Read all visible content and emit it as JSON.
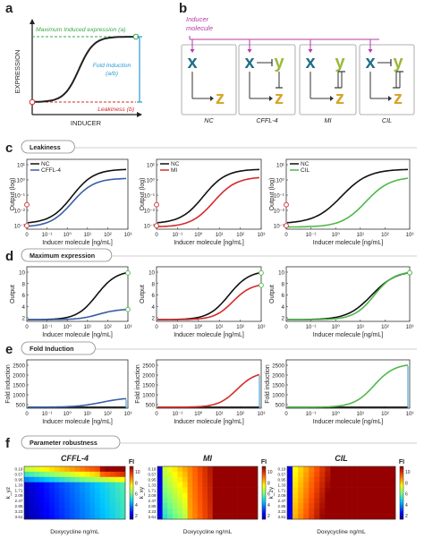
{
  "colors": {
    "black": "#111111",
    "blue": "#3a5ea6",
    "red": "#d62a2a",
    "green": "#4fb84a",
    "ma": "#b43aa8",
    "xcol": "#1f6f86",
    "ycol": "#9ab83a",
    "zcol": "#d6a52a",
    "dash_green": "#3aa84a",
    "dash_red": "#d62a2a",
    "fi_line": "#2a9ad6"
  },
  "panel_a": {
    "letter": "a",
    "ylabel": "EXPRESSION",
    "xlabel": "INDUCER",
    "max_label": "Maximum Induced expression (a)",
    "fold_label_1": "Fold Induction",
    "fold_label_2": "(a/b)",
    "leak_label": "Leakiness (b)"
  },
  "panel_b": {
    "letter": "b",
    "inducer_1": "Inducer",
    "inducer_2": "molecule",
    "x": "x",
    "y": "y",
    "z": "z",
    "circuits": [
      "NC",
      "CFFL-4",
      "MI",
      "CIL"
    ]
  },
  "panel_c": {
    "letter": "c",
    "section_title": "Leakiness",
    "ylabel": "Output (log)",
    "xlabel": "Inducer molecule [ng/mL]",
    "yticks": [
      "10¹",
      "10⁰",
      "10⁻¹",
      "10⁻²",
      "10⁻³"
    ],
    "xticks": [
      "0",
      "10⁻¹",
      "10⁰",
      "10¹",
      "10²",
      "10³"
    ],
    "legends": [
      [
        "NC",
        "CFFL-4"
      ],
      [
        "NC",
        "MI"
      ],
      [
        "NC",
        "CIL"
      ]
    ]
  },
  "panel_d": {
    "letter": "d",
    "section_title": "Maximum expression",
    "ylabel": "Output",
    "xlabel": "Inducer molecule [ng/mL]",
    "yticks": [
      "10",
      "8",
      "6",
      "4",
      "2"
    ],
    "xticks": [
      "0",
      "10⁻¹",
      "10⁰",
      "10¹",
      "10²",
      "10³"
    ]
  },
  "panel_e": {
    "letter": "e",
    "section_title": "Fold Induction",
    "ylabel": "Fold induction",
    "xlabel": "Inducer molecule [ng/mL]",
    "yticks": [
      "2500",
      "2000",
      "1500",
      "1000",
      "500"
    ],
    "xticks": [
      "0",
      "10⁻¹",
      "10⁰",
      "10¹",
      "10²",
      "10³"
    ]
  },
  "panel_f": {
    "letter": "f",
    "section_title": "Parameter robustness",
    "titles": [
      "CFFL-4",
      "MI",
      "CIL"
    ],
    "ylabels": [
      "k_yz",
      "k_xy",
      "k_zy"
    ],
    "yticks": [
      "0.19",
      "0.57",
      "0.95",
      "1.33",
      "1.71",
      "2.09",
      "2.47",
      "2.85",
      "3.23",
      "3.61"
    ],
    "xlabel": "Doxycycline ng/mL",
    "colorbar_label": "FI",
    "colorbar_ticks": [
      "10",
      "8",
      "6",
      "4",
      "2"
    ]
  },
  "chart_data": [
    {
      "type": "line",
      "panel": "c1",
      "series": [
        {
          "name": "NC",
          "x": [
            0,
            0.1,
            0.3,
            1,
            3,
            10,
            30,
            100,
            300,
            1000
          ],
          "y": [
            0.01,
            0.012,
            0.02,
            0.07,
            0.4,
            2,
            6,
            10,
            11,
            11.5
          ]
        },
        {
          "name": "CFFL-4",
          "x": [
            0,
            0.1,
            0.3,
            1,
            3,
            10,
            30,
            100,
            300,
            1000
          ],
          "y": [
            0.001,
            0.0012,
            0.002,
            0.006,
            0.02,
            0.1,
            0.3,
            0.8,
            1.3,
            1.6
          ]
        }
      ]
    },
    {
      "type": "line",
      "panel": "c2",
      "series": [
        {
          "name": "NC",
          "x": [
            0,
            0.1,
            0.3,
            1,
            3,
            10,
            30,
            100,
            300,
            1000
          ],
          "y": [
            0.01,
            0.012,
            0.02,
            0.07,
            0.4,
            2,
            6,
            10,
            11,
            11.5
          ]
        },
        {
          "name": "MI",
          "x": [
            0,
            0.1,
            0.3,
            1,
            3,
            10,
            30,
            100,
            300,
            1000
          ],
          "y": [
            0.001,
            0.0011,
            0.0015,
            0.004,
            0.02,
            0.2,
            1.5,
            4,
            6.5,
            7.5
          ]
        }
      ]
    },
    {
      "type": "line",
      "panel": "c3",
      "series": [
        {
          "name": "NC",
          "x": [
            0,
            0.1,
            0.3,
            1,
            3,
            10,
            30,
            100,
            300,
            1000
          ],
          "y": [
            0.01,
            0.012,
            0.02,
            0.07,
            0.4,
            2,
            6,
            10,
            11,
            11.5
          ]
        },
        {
          "name": "CIL",
          "x": [
            0,
            0.1,
            0.3,
            1,
            3,
            10,
            30,
            100,
            300,
            1000
          ],
          "y": [
            0.001,
            0.0011,
            0.0013,
            0.003,
            0.015,
            0.2,
            2,
            8,
            11,
            11.5
          ]
        }
      ]
    },
    {
      "type": "line",
      "panel": "d",
      "ylim": [
        0,
        12
      ]
    },
    {
      "type": "line",
      "panel": "e",
      "ylim": [
        0,
        2600
      ]
    },
    {
      "type": "heatmap",
      "panel": "f",
      "xlabel": "Doxycycline ng/mL",
      "zlim": [
        0,
        11
      ]
    }
  ]
}
